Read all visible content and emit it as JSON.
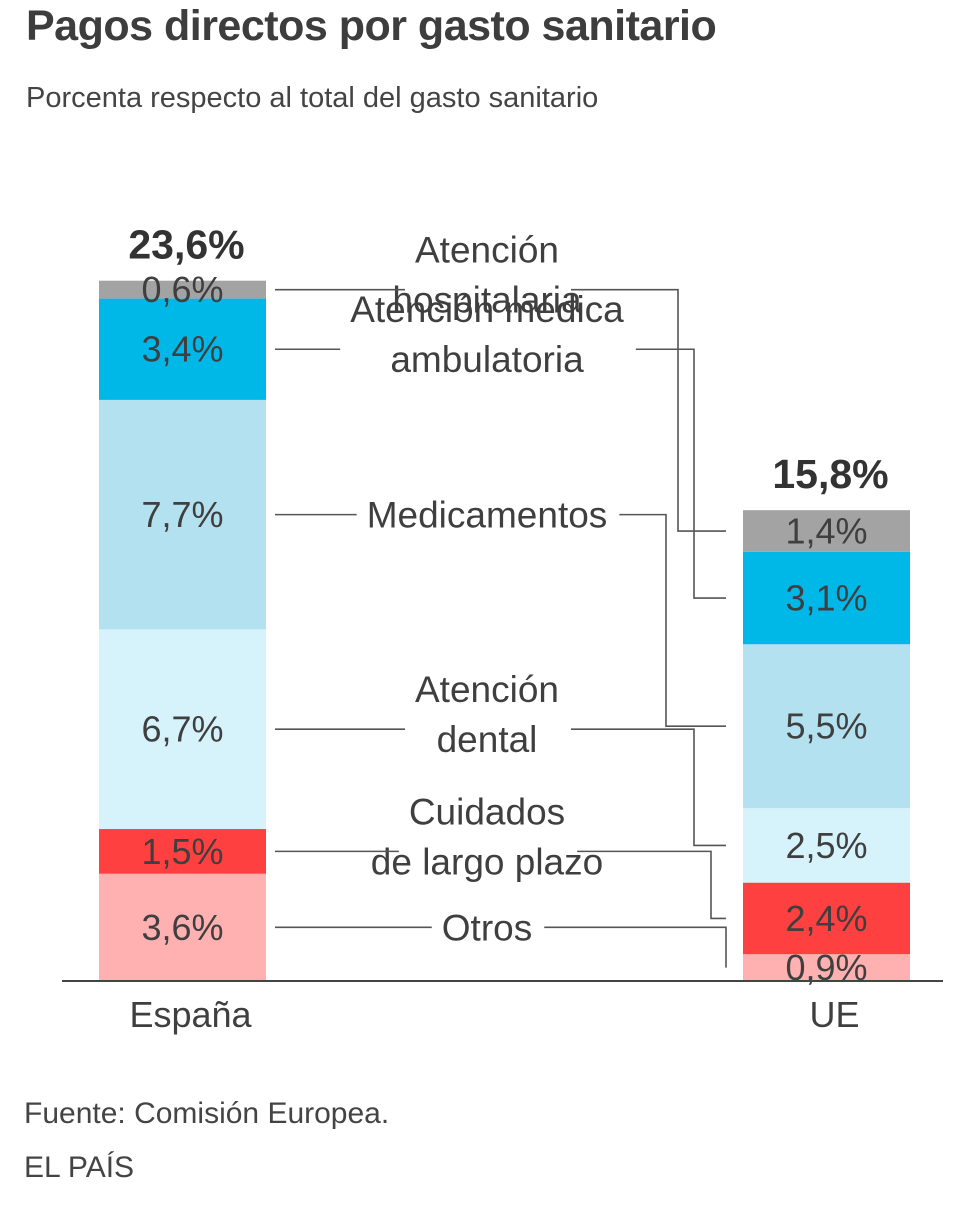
{
  "title": "Pagos directos por gasto sanitario",
  "subtitle": "Porcenta respecto al total del gasto sanitario",
  "source": "Fuente: Comisión Europea.",
  "brand": "EL PAÍS",
  "chart_data": {
    "type": "bar",
    "stacked": true,
    "grid": false,
    "categories": [
      "España",
      "UE"
    ],
    "totals": [
      {
        "value": 23.6,
        "label": "23,6%"
      },
      {
        "value": 15.8,
        "label": "15,8%"
      }
    ],
    "series": [
      {
        "name": "Otros",
        "label_lines": [
          "Otros"
        ],
        "color": "#ffb0b0",
        "values": [
          3.6,
          0.9
        ],
        "value_labels": [
          "3,6%",
          "0,9%"
        ]
      },
      {
        "name": "Cuidados de largo plazo",
        "label_lines": [
          "Cuidados",
          "de largo plazo"
        ],
        "color": "#ff4040",
        "values": [
          1.5,
          2.4
        ],
        "value_labels": [
          "1,5%",
          "2,4%"
        ]
      },
      {
        "name": "Atención dental",
        "label_lines": [
          "Atención",
          "dental"
        ],
        "color": "#d6f2fa",
        "values": [
          6.7,
          2.5
        ],
        "value_labels": [
          "6,7%",
          "2,5%"
        ]
      },
      {
        "name": "Medicamentos",
        "label_lines": [
          "Medicamentos"
        ],
        "color": "#b3e1ef",
        "values": [
          7.7,
          5.5
        ],
        "value_labels": [
          "7,7%",
          "5,5%"
        ]
      },
      {
        "name": "Atención médica ambulatoria",
        "label_lines": [
          "Atención médica",
          "ambulatoria"
        ],
        "color": "#00b8e8",
        "values": [
          3.4,
          3.1
        ],
        "value_labels": [
          "3,4%",
          "3,1%"
        ]
      },
      {
        "name": "Atención hospitalaria",
        "label_lines": [
          "Atención",
          "hospitalaria"
        ],
        "color": "#a3a3a3",
        "values": [
          0.6,
          1.4
        ],
        "value_labels": [
          "0,6%",
          "1,4%"
        ]
      }
    ]
  }
}
